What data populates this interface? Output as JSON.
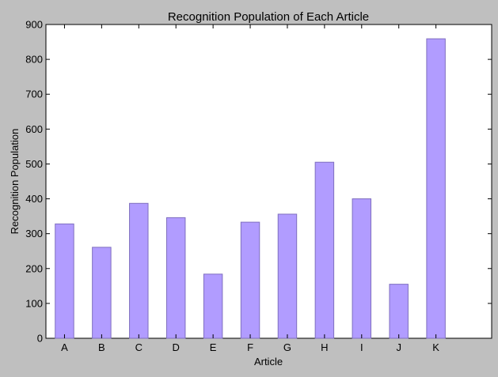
{
  "chart_data": {
    "type": "bar",
    "title": "Recognition Population of Each Article",
    "xlabel": "Article",
    "ylabel": "Recognition Population",
    "categories": [
      "A",
      "B",
      "C",
      "D",
      "E",
      "F",
      "G",
      "H",
      "I",
      "J",
      "K"
    ],
    "values": [
      328,
      261,
      387,
      346,
      184,
      333,
      356,
      505,
      400,
      155,
      859
    ],
    "ylim": [
      0,
      900
    ],
    "yticks": [
      0,
      100,
      200,
      300,
      400,
      500,
      600,
      700,
      800,
      900
    ],
    "xlim": [
      0,
      12
    ],
    "bar_positions": [
      0.5,
      1.5,
      2.5,
      3.5,
      4.5,
      5.5,
      6.5,
      7.5,
      8.5,
      9.5,
      10.5
    ],
    "bar_width": 0.5,
    "grid": false,
    "colors": {
      "bar_fill": "#b19cff",
      "bar_edge": "#7f6fbf",
      "plot_background": "#ffffff",
      "figure_background": "#bfbfbf"
    }
  }
}
